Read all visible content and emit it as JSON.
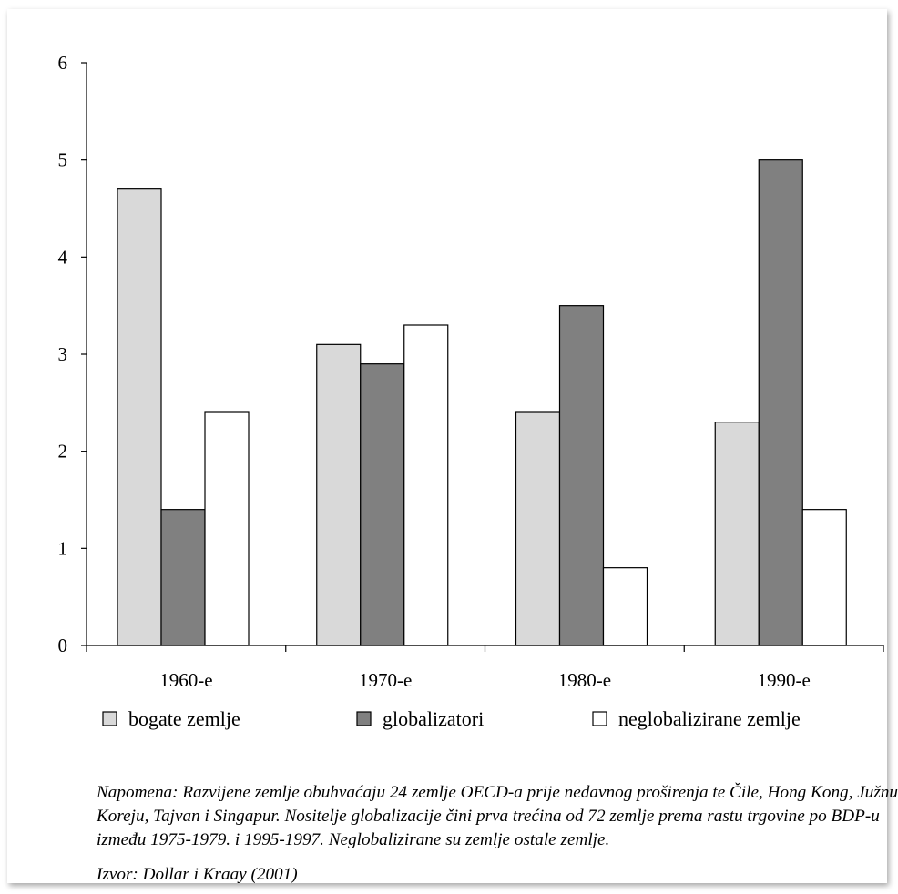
{
  "chart_data": {
    "type": "bar",
    "categories": [
      "1960-e",
      "1970-e",
      "1980-e",
      "1990-e"
    ],
    "series": [
      {
        "name": "bogate zemlje",
        "values": [
          4.7,
          3.1,
          2.4,
          2.3
        ],
        "color": "#d9d9d9"
      },
      {
        "name": "globalizatori",
        "values": [
          1.4,
          2.9,
          3.5,
          5.0
        ],
        "color": "#808080"
      },
      {
        "name": "neglobalizirane zemlje",
        "values": [
          2.4,
          3.3,
          0.8,
          1.4
        ],
        "color": "#ffffff"
      }
    ],
    "ylim": [
      0,
      6
    ],
    "yticks": [
      "0",
      "1",
      "2",
      "3",
      "4",
      "5",
      "6"
    ],
    "grid": false,
    "legend_position": "bottom"
  },
  "note": "Napomena: Razvijene zemlje obuhvaćaju 24 zemlje OECD-a prije nedavnog proširenja te Čile, Hong Kong, Južnu Koreju, Tajvan i Singapur. Nositelje globalizacije čini prva trećina od 72 zemlje prema rastu trgovine po BDP-u između 1975-1979. i 1995-1997. Neglobalizirane su zemlje ostale zemlje.",
  "source": "Izvor: Dollar i Kraay (2001)"
}
